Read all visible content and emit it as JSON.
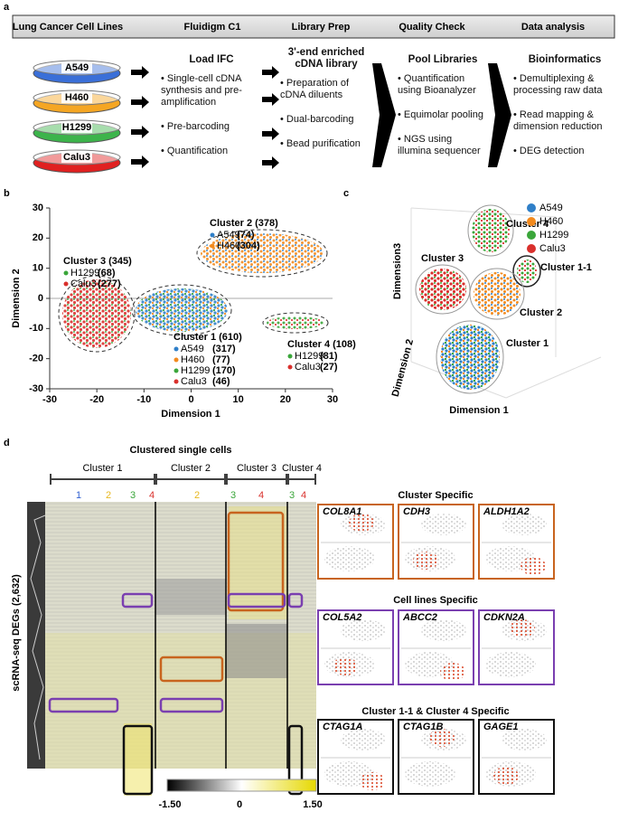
{
  "panel_a": {
    "label": "a",
    "headers": [
      "Lung Cancer Cell Lines",
      "Fluidigm C1",
      "Library Prep",
      "Quality Check",
      "Data analysis"
    ],
    "cell_lines": [
      "A549",
      "H460",
      "H1299",
      "Calu3"
    ],
    "steps": [
      {
        "heading": "Load IFC",
        "items": [
          "• Single-cell cDNA synthesis and pre-amplification",
          "• Pre-barcoding",
          "• Quantification"
        ]
      },
      {
        "heading": "3'-end enriched cDNA library",
        "items": [
          "• Preparation of cDNA diluents",
          "• Dual-barcoding",
          "• Bead purification"
        ]
      },
      {
        "heading": "Pool Libraries",
        "items": [
          "• Quantification using Bioanalyzer",
          "• Equimolar pooling",
          "• NGS using illumina sequencer"
        ]
      },
      {
        "heading": "Bioinformatics",
        "items": [
          "• Demultiplexing & processing raw data",
          "• Read mapping & dimension reduction",
          "• DEG detection"
        ]
      }
    ]
  },
  "panel_b": {
    "label": "b",
    "xlabel": "Dimension 1",
    "ylabel": "Dimension 2",
    "xlim": [
      -30,
      30
    ],
    "ylim": [
      -30,
      30
    ],
    "xticks": [
      -30,
      -20,
      -10,
      0,
      10,
      20,
      30
    ],
    "yticks": [
      -30,
      -20,
      -10,
      0,
      10,
      20,
      30
    ],
    "clusters": [
      {
        "title": "Cluster 2 (378)",
        "members": [
          {
            "name": "A549",
            "count": "(74)",
            "color": "#2f7fc8"
          },
          {
            "name": "H460",
            "count": "(304)",
            "color": "#f28a1e"
          }
        ]
      },
      {
        "title": "Cluster 3 (345)",
        "members": [
          {
            "name": "H1299",
            "count": "(68)",
            "color": "#3aa63a"
          },
          {
            "name": "Calu3",
            "count": "(277)",
            "color": "#d9302c"
          }
        ]
      },
      {
        "title": "Cluster 1 (610)",
        "members": [
          {
            "name": "A549",
            "count": "(317)",
            "color": "#2f7fc8"
          },
          {
            "name": "H460",
            "count": "(77)",
            "color": "#f28a1e"
          },
          {
            "name": "H1299",
            "count": "(170)",
            "color": "#3aa63a"
          },
          {
            "name": "Calu3",
            "count": "(46)",
            "color": "#d9302c"
          }
        ]
      },
      {
        "title": "Cluster 4 (108)",
        "members": [
          {
            "name": "H1299",
            "count": "(81)",
            "color": "#3aa63a"
          },
          {
            "name": "Calu3",
            "count": "(27)",
            "color": "#d9302c"
          }
        ]
      }
    ]
  },
  "panel_c": {
    "label": "c",
    "legend": [
      {
        "name": "A549",
        "color": "#2f7fc8"
      },
      {
        "name": "H460",
        "color": "#f28a1e"
      },
      {
        "name": "H1299",
        "color": "#3aa63a"
      },
      {
        "name": "Calu3",
        "color": "#d9302c"
      }
    ],
    "clusters": [
      "Cluster 4",
      "Cluster 3",
      "Cluster 1-1",
      "Cluster 2",
      "Cluster 1"
    ],
    "axes": [
      "Dimension3",
      "Dimension 2",
      "Dimension 1"
    ]
  },
  "panel_d": {
    "label": "d",
    "title": "Clustered single cells",
    "clusters": [
      "Cluster 1",
      "Cluster 2",
      "Cluster 3",
      "Cluster 4"
    ],
    "subgroups": [
      {
        "text": "1",
        "color": "#3060d0"
      },
      {
        "text": "2",
        "color": "#e8b820"
      },
      {
        "text": "3",
        "color": "#3aa63a"
      },
      {
        "text": "4",
        "color": "#d9302c"
      },
      {
        "text": "2",
        "color": "#e8b820"
      },
      {
        "text": "3",
        "color": "#3aa63a"
      },
      {
        "text": "4",
        "color": "#d9302c"
      },
      {
        "text": "3",
        "color": "#3aa63a"
      },
      {
        "text": "4",
        "color": "#d9302c"
      }
    ],
    "ylabel": "scRNA-seq DEGs (2,632)",
    "colorbar": [
      "-1.50",
      "0",
      "1.50"
    ],
    "groups": [
      {
        "title": "Cluster Specific",
        "color": "#c8641e",
        "genes": [
          "COL8A1",
          "CDH3",
          "ALDH1A2"
        ]
      },
      {
        "title": "Cell lines Specific",
        "color": "#7a3fb0",
        "genes": [
          "COL5A2",
          "ABCC2",
          "CDKN2A"
        ]
      },
      {
        "title": "Cluster 1-1 & Cluster 4 Specific",
        "color": "#111111",
        "genes": [
          "CTAG1A",
          "CTAG1B",
          "GAGE1"
        ]
      }
    ]
  }
}
